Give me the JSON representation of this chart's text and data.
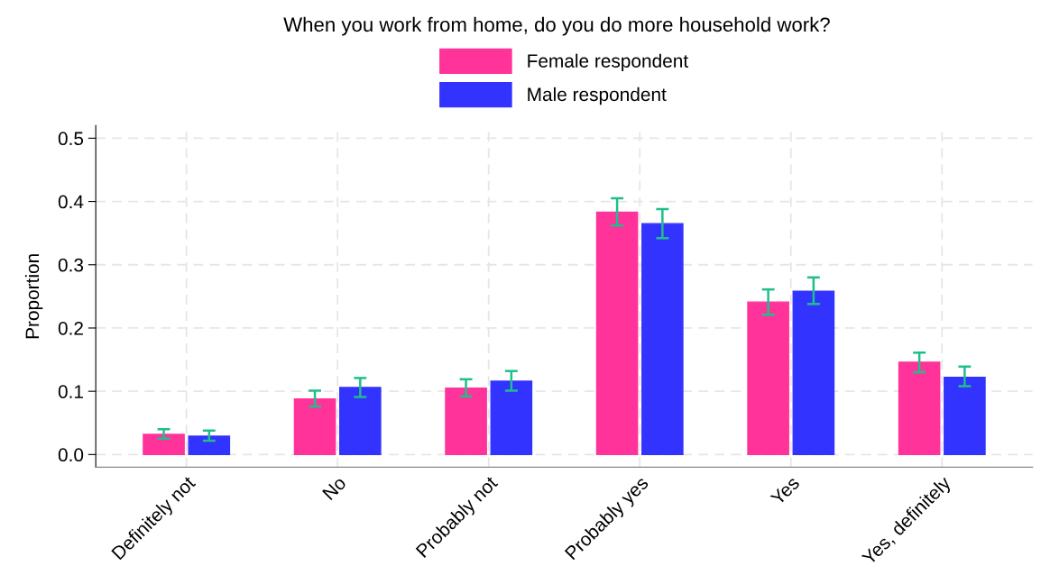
{
  "chart_data": {
    "type": "bar",
    "title": "When you work from home, do you do more household work?",
    "ylabel": "Proportion",
    "categories": [
      "Definitely not",
      "No",
      "Probably not",
      "Probably yes",
      "Yes",
      "Yes, definitely"
    ],
    "series": [
      {
        "name": "Female respondent",
        "color": "#ff3399",
        "values": [
          0.032,
          0.088,
          0.105,
          0.383,
          0.241,
          0.146
        ],
        "errors": [
          [
            0.025,
            0.04
          ],
          [
            0.076,
            0.101
          ],
          [
            0.092,
            0.119
          ],
          [
            0.362,
            0.405
          ],
          [
            0.221,
            0.261
          ],
          [
            0.13,
            0.161
          ]
        ]
      },
      {
        "name": "Male respondent",
        "color": "#3333ff",
        "values": [
          0.029,
          0.106,
          0.116,
          0.365,
          0.258,
          0.122
        ],
        "errors": [
          [
            0.022,
            0.038
          ],
          [
            0.091,
            0.121
          ],
          [
            0.101,
            0.132
          ],
          [
            0.342,
            0.388
          ],
          [
            0.238,
            0.28
          ],
          [
            0.108,
            0.139
          ]
        ]
      }
    ],
    "ylim": [
      -0.02,
      0.52
    ],
    "yticks": [
      {
        "value": 0,
        "label": "0.0"
      },
      {
        "value": 0.1,
        "label": "0.1"
      },
      {
        "value": 0.2,
        "label": "0.2"
      },
      {
        "value": 0.3,
        "label": "0.3"
      },
      {
        "value": 0.4,
        "label": "0.4"
      },
      {
        "value": 0.5,
        "label": "0.5"
      }
    ],
    "grid": true,
    "legend": "top"
  }
}
